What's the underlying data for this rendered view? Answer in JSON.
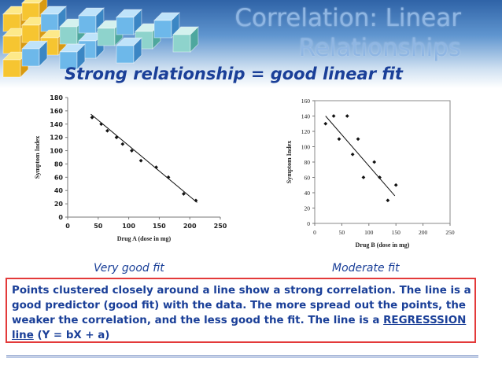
{
  "slide": {
    "title": "Correlation:  Linear Relationships",
    "subtitle": "Strong relationship = good linear fit",
    "captions": {
      "left": "Very good fit",
      "right": "Moderate fit"
    },
    "explanation": {
      "part1": "Points clustered closely around a line show a strong correlation. The line is a good predictor (good fit) with the data.  The more spread out the points, the weaker the correlation, and the less good the fit. The line is a ",
      "link": "REGRESSSION line",
      "part2": " (Y = bX + a)"
    },
    "colors": {
      "title": "#8fb6e3",
      "subtitle": "#1a3f98",
      "box_border": "#e33a3a"
    }
  },
  "chart_data": [
    {
      "type": "scatter",
      "title": "",
      "xlabel": "Drug A (dose in mg)",
      "ylabel": "Symptom Index",
      "xlim": [
        0,
        250
      ],
      "ylim": [
        0,
        180
      ],
      "x_ticks": [
        0,
        50,
        100,
        150,
        200,
        250
      ],
      "y_ticks": [
        0,
        20,
        40,
        60,
        80,
        100,
        120,
        140,
        160,
        180
      ],
      "points": [
        [
          40,
          150
        ],
        [
          55,
          140
        ],
        [
          65,
          130
        ],
        [
          80,
          120
        ],
        [
          90,
          110
        ],
        [
          105,
          100
        ],
        [
          120,
          85
        ],
        [
          145,
          75
        ],
        [
          165,
          60
        ],
        [
          190,
          35
        ],
        [
          210,
          25
        ]
      ],
      "trendline": [
        [
          38,
          155
        ],
        [
          212,
          22
        ]
      ],
      "grid": false,
      "legend": "none"
    },
    {
      "type": "scatter",
      "title": "",
      "xlabel": "Drug B (dose in mg)",
      "ylabel": "Symptom Index",
      "xlim": [
        0,
        250
      ],
      "ylim": [
        0,
        160
      ],
      "x_ticks": [
        0,
        50,
        100,
        150,
        200,
        250
      ],
      "y_ticks": [
        0,
        20,
        40,
        60,
        80,
        100,
        120,
        140,
        160
      ],
      "points": [
        [
          20,
          130
        ],
        [
          35,
          140
        ],
        [
          45,
          110
        ],
        [
          60,
          140
        ],
        [
          70,
          90
        ],
        [
          80,
          110
        ],
        [
          90,
          60
        ],
        [
          110,
          80
        ],
        [
          120,
          60
        ],
        [
          135,
          30
        ],
        [
          150,
          50
        ]
      ],
      "trendline": [
        [
          20,
          140
        ],
        [
          148,
          36
        ]
      ],
      "grid": false,
      "legend": "none"
    }
  ]
}
